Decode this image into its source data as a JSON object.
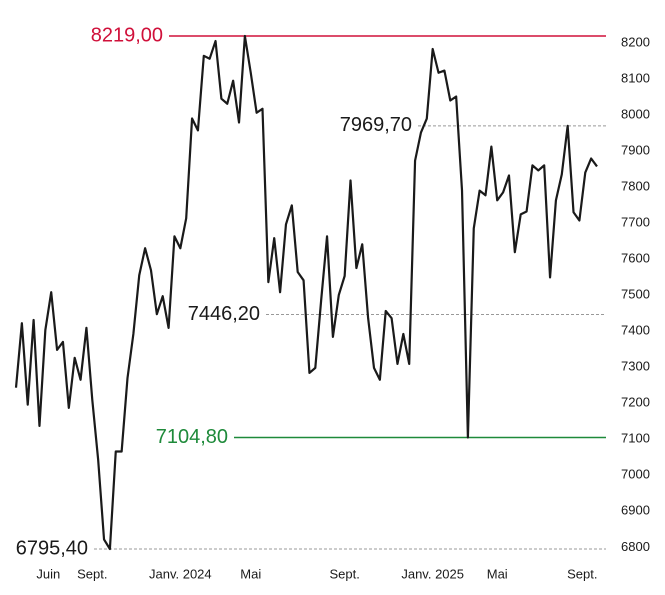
{
  "chart_data": {
    "type": "line",
    "x": [
      0,
      1,
      2,
      3,
      4,
      5,
      6,
      7,
      8,
      9,
      10,
      11,
      12,
      13,
      14,
      15,
      16,
      17,
      18,
      19,
      20,
      21,
      22,
      23,
      24,
      25,
      26,
      27,
      28,
      29,
      30,
      31,
      32,
      33,
      34,
      35,
      36,
      37,
      38,
      39,
      40,
      41,
      42,
      43,
      44,
      45,
      46,
      47,
      48,
      49,
      50,
      51,
      52,
      53,
      54,
      55,
      56,
      57,
      58,
      59,
      60,
      61,
      62,
      63,
      64,
      65,
      66,
      67,
      68,
      69,
      70,
      71,
      72,
      73,
      74,
      75,
      76,
      77,
      78,
      79,
      80,
      81,
      82,
      83,
      84,
      85,
      86,
      87,
      88,
      89,
      90,
      91,
      92,
      93,
      94,
      95,
      96,
      97,
      98,
      99
    ],
    "series": [
      {
        "color": "#1a1a1a",
        "values": [
          7243,
          7422,
          7196,
          7431,
          7137,
          7403,
          7508,
          7348,
          7370,
          7187,
          7326,
          7265,
          7409,
          7209,
          7043,
          6822,
          6795.4,
          7066,
          7066,
          7270,
          7392,
          7555,
          7630,
          7569,
          7447,
          7497,
          7409,
          7663,
          7630,
          7713,
          7990,
          7957,
          8164,
          8156,
          8205,
          8045,
          8031,
          8095,
          7979,
          8219,
          8117,
          8006,
          8017,
          7536,
          7658,
          7508,
          7696,
          7749,
          7564,
          7541,
          7284,
          7298,
          7486,
          7663,
          7384,
          7500,
          7553,
          7818,
          7575,
          7641,
          7436,
          7298,
          7265,
          7456,
          7436,
          7309,
          7392,
          7309,
          7873,
          7951,
          7990,
          8183,
          8117,
          8123,
          8040,
          8051,
          7790,
          7104.8,
          7685,
          7790,
          7777,
          7912,
          7763,
          7785,
          7832,
          7619,
          7724,
          7732,
          7860,
          7846,
          7860,
          7549,
          7763,
          7835,
          7969.7,
          7730,
          7707,
          7840,
          7879,
          7857
        ]
      }
    ],
    "xlim": [
      0,
      99
    ],
    "xticks": [
      {
        "value": 5.5,
        "label": "Juin"
      },
      {
        "value": 13,
        "label": "Sept."
      },
      {
        "value": 28,
        "label": "Janv. 2024"
      },
      {
        "value": 40,
        "label": "Mai"
      },
      {
        "value": 56,
        "label": "Sept."
      },
      {
        "value": 71,
        "label": "Janv. 2025"
      },
      {
        "value": 82,
        "label": "Mai"
      },
      {
        "value": 96.5,
        "label": "Sept."
      }
    ],
    "ylim": [
      6795.4,
      8219
    ],
    "yticks": [
      6800,
      6900,
      7000,
      7100,
      7200,
      7300,
      7400,
      7500,
      7600,
      7700,
      7800,
      7900,
      8000,
      8100,
      8200
    ],
    "annotations": [
      {
        "value": 8219,
        "label": "8219,00",
        "color": "#d0103a",
        "style": "solid"
      },
      {
        "value": 7969.7,
        "label": "7969,70",
        "color": "#999999",
        "style": "dashed"
      },
      {
        "value": 7446.2,
        "label": "7446,20",
        "color": "#999999",
        "style": "dashed"
      },
      {
        "value": 7104.8,
        "label": "7104,80",
        "color": "#1e8a3a",
        "style": "solid"
      },
      {
        "value": 6795.4,
        "label": "6795,40",
        "color": "#999999",
        "style": "dashed"
      }
    ]
  }
}
